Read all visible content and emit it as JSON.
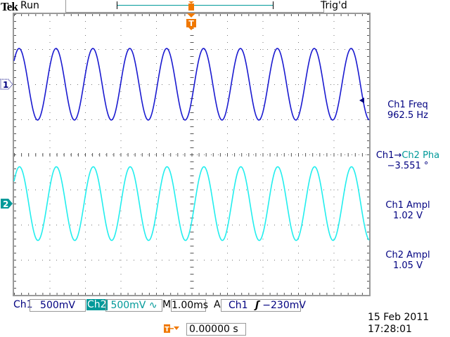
{
  "header": {
    "brand": "Tek",
    "status": "Run",
    "trigger_state": "Trig'd"
  },
  "measurements": [
    {
      "label": "Ch1 Freq",
      "value": "962.5 Hz"
    },
    {
      "label_a": "Ch1",
      "arrow": "→",
      "label_b": "Ch2 Pha",
      "value": "−3.551 °"
    },
    {
      "label": "Ch1 Ampl",
      "value": "1.02 V"
    },
    {
      "label": "Ch2 Ampl",
      "value": "1.05 V"
    }
  ],
  "footer": {
    "ch1_label": "Ch1",
    "ch1_scale": "500mV",
    "ch2_label": "Ch2",
    "ch2_scale": "500mV",
    "ch2_coupling_icon": "∿",
    "timebase_label": "M",
    "timebase": "1.00ms",
    "trigger_mode": "A",
    "trigger_source": "Ch1",
    "trigger_slope_icon": "rising-edge",
    "trigger_level": "−230mV",
    "trigger_position": "0.00000 s",
    "date": "15 Feb  2011",
    "time": "17:28:01"
  },
  "markers": {
    "ch1": "1",
    "ch2": "2",
    "trigger": "T"
  },
  "colors": {
    "ch1": "#1a1ad0",
    "ch2": "#22eeee",
    "ch2_text": "#009999",
    "trigger": "#f07800",
    "text": "#000080"
  },
  "chart_data": {
    "type": "line",
    "grid": true,
    "x_divisions": 10,
    "y_divisions": 8,
    "time_per_div_ms": 1.0,
    "series": [
      {
        "name": "Ch1",
        "volts_per_div": 0.5,
        "frequency_hz": 962.5,
        "amplitude_pp_v": 1.02,
        "trigger_level_v": -0.23,
        "phase_deg": 0,
        "offset_div": 2
      },
      {
        "name": "Ch2",
        "volts_per_div": 0.5,
        "frequency_hz": 962.5,
        "amplitude_pp_v": 1.05,
        "phase_deg": -3.551,
        "offset_div": -1.4
      }
    ]
  }
}
